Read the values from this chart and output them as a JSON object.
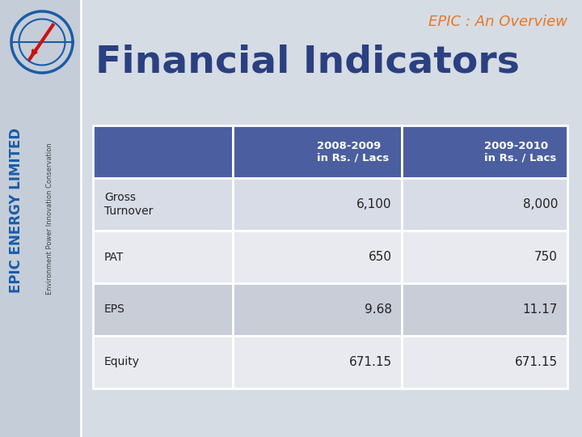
{
  "title_right": "EPIC : An Overview",
  "title_right_color": "#E87722",
  "main_title": "Financial Indicators",
  "main_title_color": "#2A4080",
  "bg_color": "#D6DCE4",
  "sidebar_bg_color": "#C5CDD8",
  "header_bg": "#4B5FA0",
  "header_text_color": "#FFFFFF",
  "row_labels": [
    "Gross\nTurnover",
    "PAT",
    "EPS",
    "Equity"
  ],
  "col_headers": [
    "2008-2009\nin Rs. / Lacs",
    "2009-2010\nin Rs. / Lacs"
  ],
  "values": [
    [
      "6,100",
      "8,000"
    ],
    [
      "650",
      "750"
    ],
    [
      "9.68",
      "11.17"
    ],
    [
      "671.15",
      "671.15"
    ]
  ],
  "row_bg_1": "#D8DCE6",
  "row_bg_2": "#E8EAF0",
  "row_bg_3": "#C8CDD8",
  "row_bg_4": "#E8EAF0",
  "cell_text_color": "#222222",
  "label_text_color": "#222222",
  "sidebar_text1": "EPIC ENERGY LIMITED",
  "sidebar_text1_color": "#1A5CA8",
  "sidebar_text2": "Environment Power Innovation Conservation",
  "sidebar_text2_color": "#444444",
  "logo_circle_color": "#C5CDD8",
  "logo_arc_color": "#1A5CA8",
  "logo_slash_color": "#CC1111"
}
